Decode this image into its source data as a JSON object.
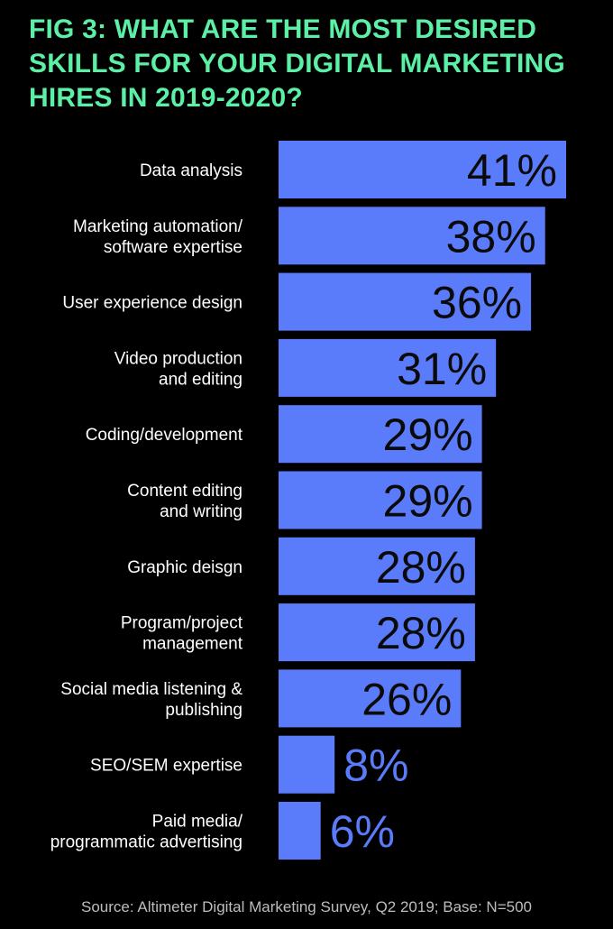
{
  "chart_data": {
    "type": "bar",
    "orientation": "horizontal",
    "title": "FIG 3: WHAT ARE THE MOST DESIRED\nSKILLS FOR YOUR DIGITAL MARKETING\nHIRES IN 2019-2020?",
    "categories": [
      [
        "Data analysis"
      ],
      [
        "Marketing automation/",
        "software expertise"
      ],
      [
        "User experience design"
      ],
      [
        "Video production",
        "and editing"
      ],
      [
        "Coding/development"
      ],
      [
        "Content editing",
        "and writing"
      ],
      [
        "Graphic deisgn"
      ],
      [
        "Program/project",
        "management"
      ],
      [
        "Social media listening &",
        "publishing"
      ],
      [
        "SEO/SEM expertise"
      ],
      [
        "Paid media/",
        "programmatic advertising"
      ]
    ],
    "values": [
      41,
      38,
      36,
      31,
      29,
      29,
      28,
      28,
      26,
      8,
      6
    ],
    "value_labels": [
      "41%",
      "38%",
      "36%",
      "31%",
      "29%",
      "29%",
      "28%",
      "28%",
      "26%",
      "8%",
      "6%"
    ],
    "xlim": [
      0,
      41
    ],
    "grid": false,
    "legend": "none",
    "source": "Source: Altimeter Digital Marketing Survey, Q2 2019; Base: N=500"
  },
  "colors": {
    "background": "#000000",
    "title": "#5cf0a6",
    "bar": "#5b7cfa",
    "label_inside": "#0a0a0a",
    "label_outside": "#5b7cfa",
    "category_text": "#ffffff",
    "source_text": "#bdbdbd"
  }
}
